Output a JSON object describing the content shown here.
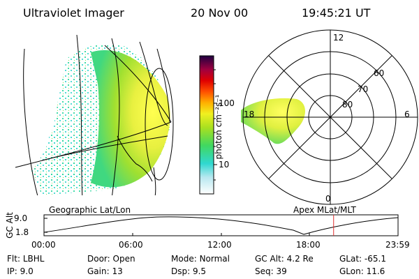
{
  "header": {
    "instrument": "Ultraviolet Imager",
    "date": "20 Nov 00",
    "time": "19:45:21 UT"
  },
  "colorbar": {
    "unit_label": "photon cm⁻²s⁻¹",
    "tick_100": "100",
    "tick_10": "10"
  },
  "polar": {
    "mlt_labels": {
      "top": "12",
      "left": "18",
      "right": "6",
      "bottom": "0"
    },
    "lat_labels": [
      "60",
      "70",
      "80"
    ]
  },
  "panels": {
    "left_label": "Geographic Lat/Lon",
    "right_label": "Apex MLat/MLT"
  },
  "altitude_plot": {
    "ylabel": "GC Alt",
    "ymax": "9.0",
    "ymin": "1.8",
    "xticks": [
      "00:00",
      "06:00",
      "12:00",
      "18:00",
      "23:59"
    ],
    "current_time_fraction": 0.818
  },
  "status": {
    "flt": {
      "label": "Flt:",
      "value": "LBHL"
    },
    "ip": {
      "label": "IP:",
      "value": "9.0"
    },
    "door": {
      "label": "Door:",
      "value": "Open"
    },
    "gain": {
      "label": "Gain:",
      "value": "13"
    },
    "mode": {
      "label": "Mode:",
      "value": "Normal"
    },
    "dsp": {
      "label": "Dsp:",
      "value": "9.5"
    },
    "gcalt": {
      "label": "GC Alt:",
      "value": "4.2 Re"
    },
    "seq": {
      "label": "Seq:",
      "value": "39"
    },
    "glat": {
      "label": "GLat:",
      "value": "-65.1"
    },
    "glon": {
      "label": "GLon:",
      "value": "11.6"
    }
  },
  "colors": {
    "aurora_bright": "#ffff44",
    "aurora_mid": "#c8e830",
    "aurora_low": "#40d880",
    "marker": "#e03030"
  }
}
